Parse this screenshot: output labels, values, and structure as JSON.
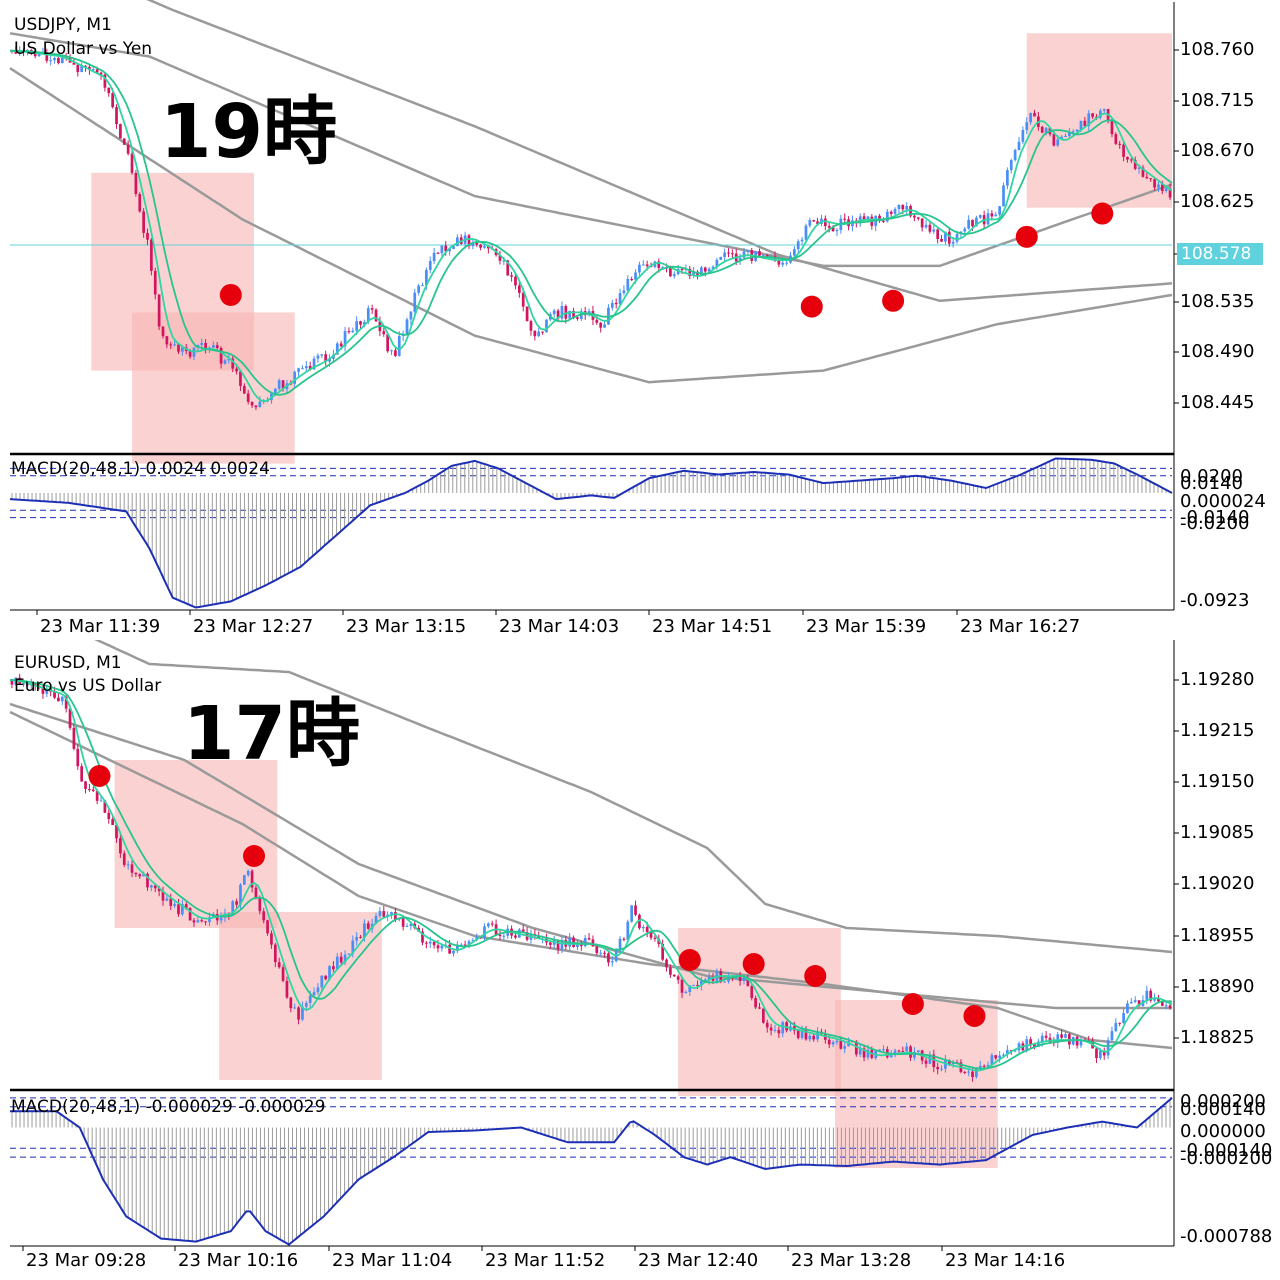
{
  "colors": {
    "bull": "#4a8ef7",
    "bear": "#d2155f",
    "ma_fast": "#2fd6a0",
    "ma_slow": "#27c48c",
    "band": "#9a9a9a",
    "macd_line": "#1c2fb5",
    "macd_hist": "#9c9c9c",
    "box": "#f8b4b4",
    "dot": "#e6000c",
    "hline": "#5fd2dd"
  },
  "chart_data": [
    {
      "type": "candlestick",
      "symbol": "USDJPY, M1",
      "description": "US Dollar vs Yen",
      "annotation": "19時",
      "ylim": [
        108.4,
        108.78
      ],
      "y_ticks": [
        "108.760",
        "108.715",
        "108.670",
        "108.625",
        "108.578",
        "108.535",
        "108.490",
        "108.445"
      ],
      "current_price": "108.578",
      "x_labels": [
        "23 Mar 11:39",
        "23 Mar 12:27",
        "23 Mar 13:15",
        "23 Mar 14:03",
        "23 Mar 14:51",
        "23 Mar 15:39",
        "23 Mar 16:27"
      ],
      "close_path": [
        [
          0,
          108.745
        ],
        [
          0.04,
          108.74
        ],
        [
          0.08,
          108.72
        ],
        [
          0.1,
          108.66
        ],
        [
          0.12,
          108.57
        ],
        [
          0.13,
          108.5
        ],
        [
          0.15,
          108.485
        ],
        [
          0.17,
          108.49
        ],
        [
          0.19,
          108.475
        ],
        [
          0.21,
          108.44
        ],
        [
          0.23,
          108.455
        ],
        [
          0.25,
          108.47
        ],
        [
          0.27,
          108.48
        ],
        [
          0.29,
          108.5
        ],
        [
          0.31,
          108.52
        ],
        [
          0.33,
          108.48
        ],
        [
          0.35,
          108.54
        ],
        [
          0.37,
          108.575
        ],
        [
          0.39,
          108.585
        ],
        [
          0.41,
          108.575
        ],
        [
          0.43,
          108.555
        ],
        [
          0.45,
          108.5
        ],
        [
          0.47,
          108.52
        ],
        [
          0.49,
          108.52
        ],
        [
          0.51,
          108.51
        ],
        [
          0.53,
          108.545
        ],
        [
          0.55,
          108.565
        ],
        [
          0.57,
          108.555
        ],
        [
          0.59,
          108.55
        ],
        [
          0.61,
          108.565
        ],
        [
          0.63,
          108.57
        ],
        [
          0.65,
          108.565
        ],
        [
          0.67,
          108.565
        ],
        [
          0.69,
          108.6
        ],
        [
          0.71,
          108.595
        ],
        [
          0.73,
          108.6
        ],
        [
          0.75,
          108.6
        ],
        [
          0.77,
          108.61
        ],
        [
          0.79,
          108.595
        ],
        [
          0.81,
          108.58
        ],
        [
          0.83,
          108.6
        ],
        [
          0.85,
          108.6
        ],
        [
          0.86,
          108.65
        ],
        [
          0.88,
          108.69
        ],
        [
          0.9,
          108.665
        ],
        [
          0.92,
          108.68
        ],
        [
          0.94,
          108.695
        ],
        [
          0.96,
          108.65
        ],
        [
          0.98,
          108.635
        ],
        [
          1.0,
          108.62
        ]
      ],
      "bands": {
        "upper": [
          [
            0,
            108.84
          ],
          [
            0.14,
            108.78
          ],
          [
            0.4,
            108.68
          ],
          [
            0.66,
            108.57
          ],
          [
            0.8,
            108.53
          ],
          [
            1.0,
            108.545
          ]
        ],
        "middle": [
          [
            0,
            108.76
          ],
          [
            0.12,
            108.74
          ],
          [
            0.4,
            108.62
          ],
          [
            0.6,
            108.58
          ],
          [
            0.7,
            108.56
          ],
          [
            0.8,
            108.56
          ],
          [
            1.0,
            108.63
          ]
        ],
        "lower": [
          [
            0,
            108.73
          ],
          [
            0.2,
            108.6
          ],
          [
            0.4,
            108.5
          ],
          [
            0.55,
            108.46
          ],
          [
            0.7,
            108.47
          ],
          [
            0.85,
            108.51
          ],
          [
            1.0,
            108.535
          ]
        ]
      },
      "red_dots": [
        [
          0.19,
          108.535
        ],
        [
          0.69,
          108.525
        ],
        [
          0.76,
          108.53
        ],
        [
          0.875,
          108.585
        ],
        [
          0.94,
          108.605
        ]
      ],
      "boxes": [
        [
          0.07,
          0.21,
          108.64,
          108.47
        ],
        [
          0.105,
          0.245,
          108.52,
          108.39
        ],
        [
          0.875,
          1.0,
          108.76,
          108.61
        ]
      ],
      "macd": {
        "label": "MACD(20,48,1) 0.0024 0.0024",
        "y_ticks": [
          "0.0200",
          "0.0140",
          "0.000024",
          "-0.0140",
          "-0.0200",
          "-0.0923"
        ],
        "ylim": [
          -0.095,
          0.03
        ],
        "series": [
          [
            0,
            -0.005
          ],
          [
            0.05,
            -0.008
          ],
          [
            0.1,
            -0.015
          ],
          [
            0.12,
            -0.045
          ],
          [
            0.14,
            -0.085
          ],
          [
            0.16,
            -0.093
          ],
          [
            0.19,
            -0.088
          ],
          [
            0.22,
            -0.075
          ],
          [
            0.25,
            -0.06
          ],
          [
            0.28,
            -0.035
          ],
          [
            0.31,
            -0.01
          ],
          [
            0.34,
            0.0
          ],
          [
            0.36,
            0.01
          ],
          [
            0.38,
            0.022
          ],
          [
            0.4,
            0.026
          ],
          [
            0.42,
            0.02
          ],
          [
            0.45,
            0.005
          ],
          [
            0.47,
            -0.005
          ],
          [
            0.5,
            -0.002
          ],
          [
            0.52,
            -0.004
          ],
          [
            0.55,
            0.012
          ],
          [
            0.58,
            0.018
          ],
          [
            0.61,
            0.015
          ],
          [
            0.64,
            0.017
          ],
          [
            0.67,
            0.015
          ],
          [
            0.7,
            0.008
          ],
          [
            0.73,
            0.01
          ],
          [
            0.76,
            0.012
          ],
          [
            0.78,
            0.014
          ],
          [
            0.81,
            0.01
          ],
          [
            0.84,
            0.004
          ],
          [
            0.87,
            0.015
          ],
          [
            0.9,
            0.028
          ],
          [
            0.93,
            0.027
          ],
          [
            0.95,
            0.024
          ],
          [
            0.97,
            0.015
          ],
          [
            1.0,
            0.0
          ]
        ]
      }
    },
    {
      "type": "candlestick",
      "symbol": "EURUSD, M1",
      "description": "Euro vs US Dollar",
      "annotation": "17時",
      "ylim": [
        1.1877,
        1.1932
      ],
      "y_ticks": [
        "1.19280",
        "1.19215",
        "1.19150",
        "1.19085",
        "1.19020",
        "1.18955",
        "1.18890",
        "1.18825"
      ],
      "x_labels": [
        "23 Mar 09:28",
        "23 Mar 10:16",
        "23 Mar 11:04",
        "23 Mar 11:52",
        "23 Mar 12:40",
        "23 Mar 13:28",
        "23 Mar 14:16"
      ],
      "close_path": [
        [
          0,
          1.1928
        ],
        [
          0.045,
          1.1926
        ],
        [
          0.06,
          1.1916
        ],
        [
          0.08,
          1.1912
        ],
        [
          0.1,
          1.1905
        ],
        [
          0.13,
          1.1901
        ],
        [
          0.16,
          1.1898
        ],
        [
          0.19,
          1.1899
        ],
        [
          0.205,
          1.1904
        ],
        [
          0.22,
          1.1897
        ],
        [
          0.24,
          1.1888
        ],
        [
          0.25,
          1.1886
        ],
        [
          0.27,
          1.1891
        ],
        [
          0.29,
          1.1894
        ],
        [
          0.31,
          1.1898
        ],
        [
          0.33,
          1.1899
        ],
        [
          0.35,
          1.1896
        ],
        [
          0.38,
          1.1894
        ],
        [
          0.41,
          1.1897
        ],
        [
          0.44,
          1.1896
        ],
        [
          0.47,
          1.1895
        ],
        [
          0.5,
          1.1895
        ],
        [
          0.52,
          1.1893
        ],
        [
          0.535,
          1.1899
        ],
        [
          0.555,
          1.1895
        ],
        [
          0.58,
          1.1889
        ],
        [
          0.6,
          1.1891
        ],
        [
          0.63,
          1.1891
        ],
        [
          0.65,
          1.1885
        ],
        [
          0.68,
          1.1884
        ],
        [
          0.71,
          1.1883
        ],
        [
          0.74,
          1.1881
        ],
        [
          0.77,
          1.18815
        ],
        [
          0.8,
          1.188
        ],
        [
          0.83,
          1.1879
        ],
        [
          0.86,
          1.1882
        ],
        [
          0.89,
          1.1883
        ],
        [
          0.92,
          1.1883
        ],
        [
          0.94,
          1.1881
        ],
        [
          0.96,
          1.1887
        ],
        [
          0.98,
          1.18885
        ],
        [
          1.0,
          1.1887
        ]
      ],
      "bands": {
        "upper": [
          [
            0,
            1.1938
          ],
          [
            0.12,
            1.193
          ],
          [
            0.24,
            1.1929
          ],
          [
            0.36,
            1.1922
          ],
          [
            0.5,
            1.1914
          ],
          [
            0.6,
            1.1907
          ],
          [
            0.65,
            1.19
          ],
          [
            0.72,
            1.1897
          ],
          [
            0.85,
            1.1896
          ],
          [
            1.0,
            1.1894
          ]
        ],
        "middle": [
          [
            0,
            1.1925
          ],
          [
            0.15,
            1.1918
          ],
          [
            0.3,
            1.1905
          ],
          [
            0.45,
            1.1897
          ],
          [
            0.6,
            1.1891
          ],
          [
            0.75,
            1.1889
          ],
          [
            0.9,
            1.1887
          ],
          [
            1.0,
            1.1887
          ]
        ],
        "lower": [
          [
            0,
            1.1924
          ],
          [
            0.2,
            1.191
          ],
          [
            0.3,
            1.1901
          ],
          [
            0.4,
            1.1896
          ],
          [
            0.55,
            1.18925
          ],
          [
            0.7,
            1.189
          ],
          [
            0.85,
            1.1887
          ],
          [
            0.93,
            1.1883
          ],
          [
            1.0,
            1.1882
          ]
        ]
      },
      "red_dots": [
        [
          0.077,
          1.1916
        ],
        [
          0.21,
          1.1906
        ],
        [
          0.585,
          1.1893
        ],
        [
          0.64,
          1.18925
        ],
        [
          0.693,
          1.1891
        ],
        [
          0.777,
          1.18875
        ],
        [
          0.83,
          1.1886
        ]
      ],
      "boxes": [
        [
          0.09,
          0.23,
          1.1918,
          1.1897
        ],
        [
          0.18,
          0.32,
          1.1899,
          1.1878
        ],
        [
          0.575,
          0.715,
          1.1897,
          1.1876
        ],
        [
          0.71,
          0.85,
          1.1888,
          1.1867
        ]
      ],
      "macd": {
        "label": "MACD(20,48,1) -0.000029 -0.000029",
        "y_ticks": [
          "0.000200",
          "0.000140",
          "0.000000",
          "-0.000140",
          "-0.000200",
          "-0.000788"
        ],
        "ylim": [
          -0.0008,
          0.00024
        ],
        "series": [
          [
            0,
            0.00011
          ],
          [
            0.04,
            0.00011
          ],
          [
            0.06,
            0.0
          ],
          [
            0.08,
            -0.00035
          ],
          [
            0.1,
            -0.0006
          ],
          [
            0.13,
            -0.00075
          ],
          [
            0.16,
            -0.00077
          ],
          [
            0.19,
            -0.0007
          ],
          [
            0.205,
            -0.00055
          ],
          [
            0.22,
            -0.0007
          ],
          [
            0.24,
            -0.00079
          ],
          [
            0.27,
            -0.0006
          ],
          [
            0.3,
            -0.00035
          ],
          [
            0.33,
            -0.0002
          ],
          [
            0.36,
            -3e-05
          ],
          [
            0.4,
            -2e-05
          ],
          [
            0.44,
            0.0
          ],
          [
            0.48,
            -0.0001
          ],
          [
            0.52,
            -0.0001
          ],
          [
            0.535,
            5e-05
          ],
          [
            0.555,
            -5e-05
          ],
          [
            0.58,
            -0.0002
          ],
          [
            0.6,
            -0.00025
          ],
          [
            0.62,
            -0.0002
          ],
          [
            0.65,
            -0.00028
          ],
          [
            0.68,
            -0.00025
          ],
          [
            0.72,
            -0.00026
          ],
          [
            0.76,
            -0.00023
          ],
          [
            0.8,
            -0.00025
          ],
          [
            0.84,
            -0.00022
          ],
          [
            0.88,
            -5e-05
          ],
          [
            0.91,
            0.0
          ],
          [
            0.94,
            4e-05
          ],
          [
            0.97,
            0.0
          ],
          [
            1.0,
            0.0002
          ]
        ]
      }
    }
  ]
}
